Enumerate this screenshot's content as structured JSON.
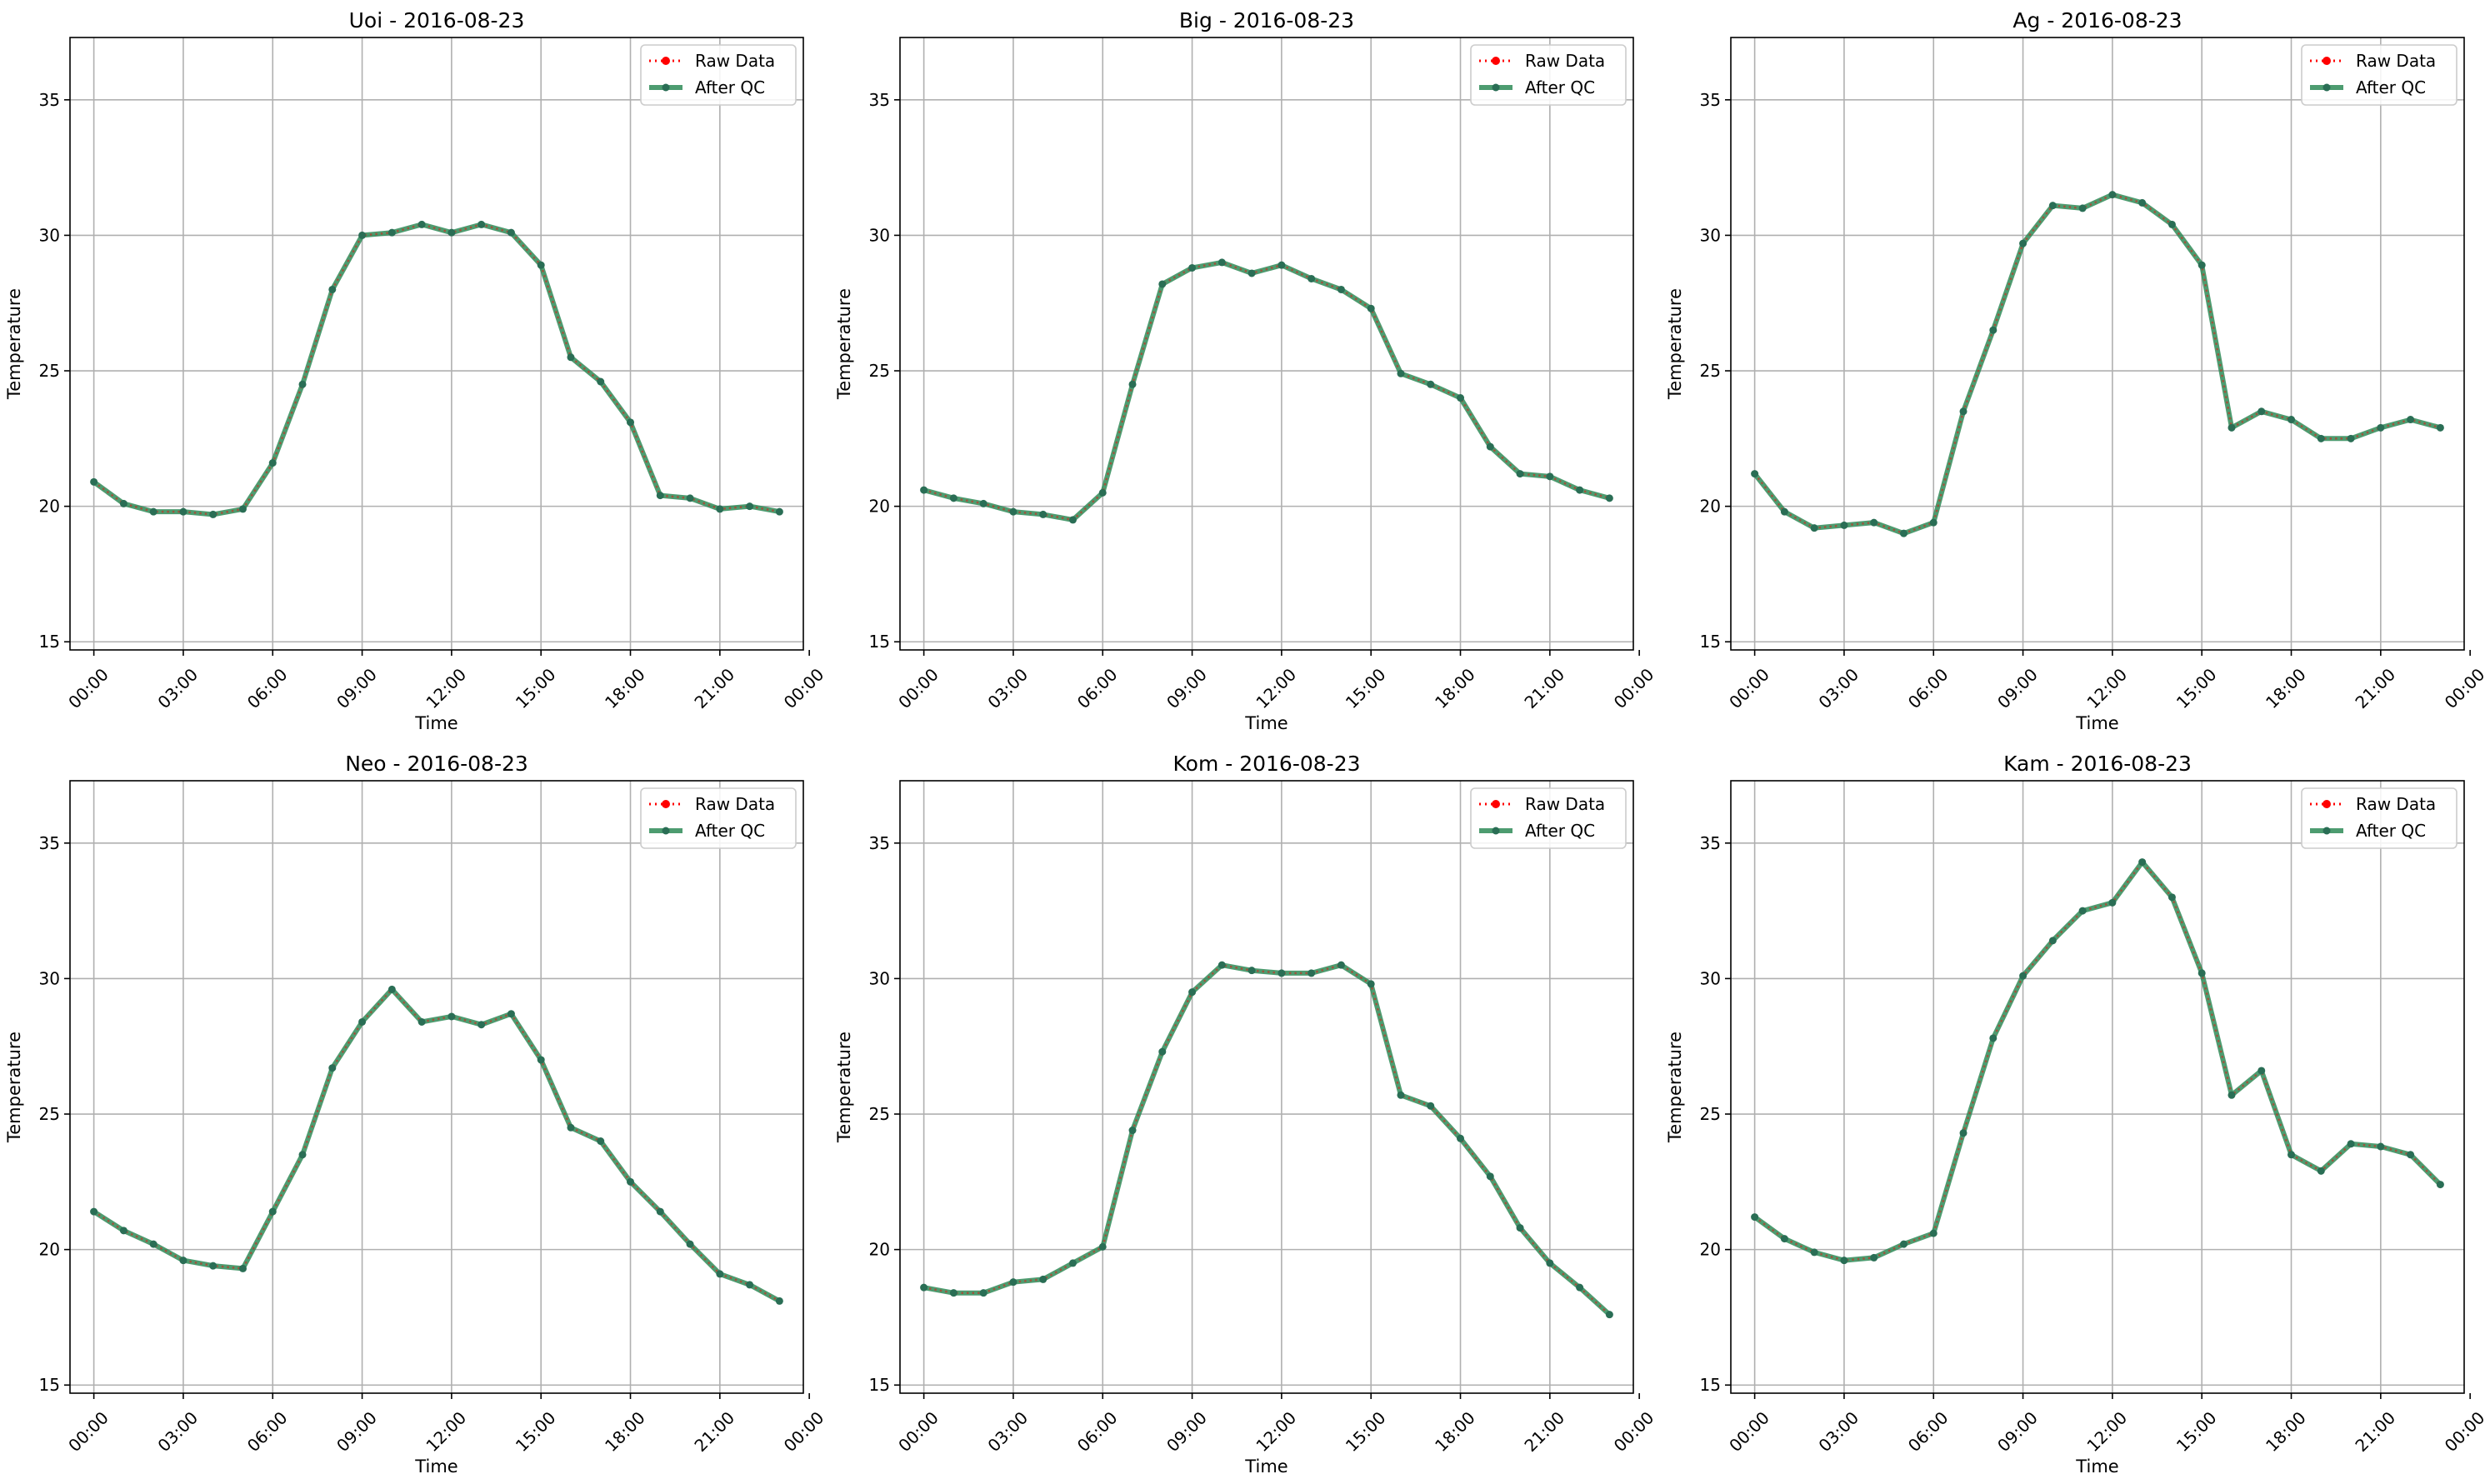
{
  "figure": {
    "colors": {
      "raw": "#ff0000",
      "qc": "#2e8b57",
      "grid": "#b0b0b0",
      "legend_border": "#cccccc"
    }
  },
  "chart_data": [
    {
      "type": "line",
      "title": "Uoi - 2016-08-23",
      "xlabel": "Time",
      "ylabel": "Temperature",
      "ylim": [
        14.7,
        37.3
      ],
      "yticks": [
        15,
        20,
        25,
        30,
        35
      ],
      "xlim": [
        -0.8,
        23.8
      ],
      "xticks": [
        0,
        3,
        6,
        9,
        12,
        15,
        18,
        21,
        24
      ],
      "xticklabels": [
        "00:00",
        "03:00",
        "06:00",
        "09:00",
        "12:00",
        "15:00",
        "18:00",
        "21:00",
        "00:00"
      ],
      "grid": true,
      "legend": "top-right",
      "series": [
        {
          "name": "Raw Data",
          "style": "dotted",
          "color": "#ff0000",
          "x": [
            0,
            1,
            2,
            3,
            4,
            5,
            6,
            7,
            8,
            9,
            10,
            11,
            12,
            13,
            14,
            15,
            16,
            17,
            18,
            19,
            20,
            21,
            22,
            23
          ],
          "values": [
            20.9,
            20.1,
            19.8,
            19.8,
            19.7,
            19.9,
            21.6,
            24.5,
            28.0,
            30.0,
            30.1,
            30.4,
            30.1,
            30.4,
            30.1,
            28.9,
            25.5,
            24.6,
            23.1,
            20.4,
            20.3,
            19.9,
            20.0,
            19.8
          ]
        },
        {
          "name": "After QC",
          "style": "solid",
          "color": "#2e8b57",
          "x": [
            0,
            1,
            2,
            3,
            4,
            5,
            6,
            7,
            8,
            9,
            10,
            11,
            12,
            13,
            14,
            15,
            16,
            17,
            18,
            19,
            20,
            21,
            22,
            23
          ],
          "values": [
            20.9,
            20.1,
            19.8,
            19.8,
            19.7,
            19.9,
            21.6,
            24.5,
            28.0,
            30.0,
            30.1,
            30.4,
            30.1,
            30.4,
            30.1,
            28.9,
            25.5,
            24.6,
            23.1,
            20.4,
            20.3,
            19.9,
            20.0,
            19.8
          ]
        }
      ]
    },
    {
      "type": "line",
      "title": "Big - 2016-08-23",
      "xlabel": "Time",
      "ylabel": "Temperature",
      "ylim": [
        14.7,
        37.3
      ],
      "yticks": [
        15,
        20,
        25,
        30,
        35
      ],
      "xlim": [
        -0.8,
        23.8
      ],
      "xticks": [
        0,
        3,
        6,
        9,
        12,
        15,
        18,
        21,
        24
      ],
      "xticklabels": [
        "00:00",
        "03:00",
        "06:00",
        "09:00",
        "12:00",
        "15:00",
        "18:00",
        "21:00",
        "00:00"
      ],
      "grid": true,
      "legend": "top-right",
      "series": [
        {
          "name": "Raw Data",
          "style": "dotted",
          "color": "#ff0000",
          "x": [
            0,
            1,
            2,
            3,
            4,
            5,
            6,
            7,
            8,
            9,
            10,
            11,
            12,
            13,
            14,
            15,
            16,
            17,
            18,
            19,
            20,
            21,
            22,
            23
          ],
          "values": [
            20.6,
            20.3,
            20.1,
            19.8,
            19.7,
            19.5,
            20.5,
            24.5,
            28.2,
            28.8,
            29.0,
            28.6,
            28.9,
            28.4,
            28.0,
            27.3,
            24.9,
            24.5,
            24.0,
            22.2,
            21.2,
            21.1,
            20.6,
            20.3
          ]
        },
        {
          "name": "After QC",
          "style": "solid",
          "color": "#2e8b57",
          "x": [
            0,
            1,
            2,
            3,
            4,
            5,
            6,
            7,
            8,
            9,
            10,
            11,
            12,
            13,
            14,
            15,
            16,
            17,
            18,
            19,
            20,
            21,
            22,
            23
          ],
          "values": [
            20.6,
            20.3,
            20.1,
            19.8,
            19.7,
            19.5,
            20.5,
            24.5,
            28.2,
            28.8,
            29.0,
            28.6,
            28.9,
            28.4,
            28.0,
            27.3,
            24.9,
            24.5,
            24.0,
            22.2,
            21.2,
            21.1,
            20.6,
            20.3
          ]
        }
      ]
    },
    {
      "type": "line",
      "title": "Ag - 2016-08-23",
      "xlabel": "Time",
      "ylabel": "Temperature",
      "ylim": [
        14.7,
        37.3
      ],
      "yticks": [
        15,
        20,
        25,
        30,
        35
      ],
      "xlim": [
        -0.8,
        23.8
      ],
      "xticks": [
        0,
        3,
        6,
        9,
        12,
        15,
        18,
        21,
        24
      ],
      "xticklabels": [
        "00:00",
        "03:00",
        "06:00",
        "09:00",
        "12:00",
        "15:00",
        "18:00",
        "21:00",
        "00:00"
      ],
      "grid": true,
      "legend": "top-right",
      "series": [
        {
          "name": "Raw Data",
          "style": "dotted",
          "color": "#ff0000",
          "x": [
            0,
            1,
            2,
            3,
            4,
            5,
            6,
            7,
            8,
            9,
            10,
            11,
            12,
            13,
            14,
            15,
            16,
            17,
            18,
            19,
            20,
            21,
            22,
            23
          ],
          "values": [
            21.2,
            19.8,
            19.2,
            19.3,
            19.4,
            19.0,
            19.4,
            23.5,
            26.5,
            29.7,
            31.1,
            31.0,
            31.5,
            31.2,
            30.4,
            28.9,
            22.9,
            23.5,
            23.2,
            22.5,
            22.5,
            22.9,
            23.2,
            22.9
          ]
        },
        {
          "name": "After QC",
          "style": "solid",
          "color": "#2e8b57",
          "x": [
            0,
            1,
            2,
            3,
            4,
            5,
            6,
            7,
            8,
            9,
            10,
            11,
            12,
            13,
            14,
            15,
            16,
            17,
            18,
            19,
            20,
            21,
            22,
            23
          ],
          "values": [
            21.2,
            19.8,
            19.2,
            19.3,
            19.4,
            19.0,
            19.4,
            23.5,
            26.5,
            29.7,
            31.1,
            31.0,
            31.5,
            31.2,
            30.4,
            28.9,
            22.9,
            23.5,
            23.2,
            22.5,
            22.5,
            22.9,
            23.2,
            22.9
          ]
        }
      ]
    },
    {
      "type": "line",
      "title": "Neo - 2016-08-23",
      "xlabel": "Time",
      "ylabel": "Temperature",
      "ylim": [
        14.7,
        37.3
      ],
      "yticks": [
        15,
        20,
        25,
        30,
        35
      ],
      "xlim": [
        -0.8,
        23.8
      ],
      "xticks": [
        0,
        3,
        6,
        9,
        12,
        15,
        18,
        21,
        24
      ],
      "xticklabels": [
        "00:00",
        "03:00",
        "06:00",
        "09:00",
        "12:00",
        "15:00",
        "18:00",
        "21:00",
        "00:00"
      ],
      "grid": true,
      "legend": "top-right",
      "series": [
        {
          "name": "Raw Data",
          "style": "dotted",
          "color": "#ff0000",
          "x": [
            0,
            1,
            2,
            3,
            4,
            5,
            6,
            7,
            8,
            9,
            10,
            11,
            12,
            13,
            14,
            15,
            16,
            17,
            18,
            19,
            20,
            21,
            22,
            23
          ],
          "values": [
            21.4,
            20.7,
            20.2,
            19.6,
            19.4,
            19.3,
            21.4,
            23.5,
            26.7,
            28.4,
            29.6,
            28.4,
            28.6,
            28.3,
            28.7,
            27.0,
            24.5,
            24.0,
            22.5,
            21.4,
            20.2,
            19.1,
            18.7,
            18.1
          ]
        },
        {
          "name": "After QC",
          "style": "solid",
          "color": "#2e8b57",
          "x": [
            0,
            1,
            2,
            3,
            4,
            5,
            6,
            7,
            8,
            9,
            10,
            11,
            12,
            13,
            14,
            15,
            16,
            17,
            18,
            19,
            20,
            21,
            22,
            23
          ],
          "values": [
            21.4,
            20.7,
            20.2,
            19.6,
            19.4,
            19.3,
            21.4,
            23.5,
            26.7,
            28.4,
            29.6,
            28.4,
            28.6,
            28.3,
            28.7,
            27.0,
            24.5,
            24.0,
            22.5,
            21.4,
            20.2,
            19.1,
            18.7,
            18.1
          ]
        }
      ]
    },
    {
      "type": "line",
      "title": "Kom - 2016-08-23",
      "xlabel": "Time",
      "ylabel": "Temperature",
      "ylim": [
        14.7,
        37.3
      ],
      "yticks": [
        15,
        20,
        25,
        30,
        35
      ],
      "xlim": [
        -0.8,
        23.8
      ],
      "xticks": [
        0,
        3,
        6,
        9,
        12,
        15,
        18,
        21,
        24
      ],
      "xticklabels": [
        "00:00",
        "03:00",
        "06:00",
        "09:00",
        "12:00",
        "15:00",
        "18:00",
        "21:00",
        "00:00"
      ],
      "grid": true,
      "legend": "top-right",
      "series": [
        {
          "name": "Raw Data",
          "style": "dotted",
          "color": "#ff0000",
          "x": [
            0,
            1,
            2,
            3,
            4,
            5,
            6,
            7,
            8,
            9,
            10,
            11,
            12,
            13,
            14,
            15,
            16,
            17,
            18,
            19,
            20,
            21,
            22,
            23
          ],
          "values": [
            18.6,
            18.4,
            18.4,
            18.8,
            18.9,
            19.5,
            20.1,
            24.4,
            27.3,
            29.5,
            30.5,
            30.3,
            30.2,
            30.2,
            30.5,
            29.8,
            25.7,
            25.3,
            24.1,
            22.7,
            20.8,
            19.5,
            18.6,
            17.6
          ]
        },
        {
          "name": "After QC",
          "style": "solid",
          "color": "#2e8b57",
          "x": [
            0,
            1,
            2,
            3,
            4,
            5,
            6,
            7,
            8,
            9,
            10,
            11,
            12,
            13,
            14,
            15,
            16,
            17,
            18,
            19,
            20,
            21,
            22,
            23
          ],
          "values": [
            18.6,
            18.4,
            18.4,
            18.8,
            18.9,
            19.5,
            20.1,
            24.4,
            27.3,
            29.5,
            30.5,
            30.3,
            30.2,
            30.2,
            30.5,
            29.8,
            25.7,
            25.3,
            24.1,
            22.7,
            20.8,
            19.5,
            18.6,
            17.6
          ]
        }
      ]
    },
    {
      "type": "line",
      "title": "Kam - 2016-08-23",
      "xlabel": "Time",
      "ylabel": "Temperature",
      "ylim": [
        14.7,
        37.3
      ],
      "yticks": [
        15,
        20,
        25,
        30,
        35
      ],
      "xlim": [
        -0.8,
        23.8
      ],
      "xticks": [
        0,
        3,
        6,
        9,
        12,
        15,
        18,
        21,
        24
      ],
      "xticklabels": [
        "00:00",
        "03:00",
        "06:00",
        "09:00",
        "12:00",
        "15:00",
        "18:00",
        "21:00",
        "00:00"
      ],
      "grid": true,
      "legend": "top-right",
      "series": [
        {
          "name": "Raw Data",
          "style": "dotted",
          "color": "#ff0000",
          "x": [
            0,
            1,
            2,
            3,
            4,
            5,
            6,
            7,
            8,
            9,
            10,
            11,
            12,
            13,
            14,
            15,
            16,
            17,
            18,
            19,
            20,
            21,
            22,
            23
          ],
          "values": [
            21.2,
            20.4,
            19.9,
            19.6,
            19.7,
            20.2,
            20.6,
            24.3,
            27.8,
            30.1,
            31.4,
            32.5,
            32.8,
            34.3,
            33.0,
            30.2,
            25.7,
            26.6,
            23.5,
            22.9,
            23.9,
            23.8,
            23.5,
            22.4
          ]
        },
        {
          "name": "After QC",
          "style": "solid",
          "color": "#2e8b57",
          "x": [
            0,
            1,
            2,
            3,
            4,
            5,
            6,
            7,
            8,
            9,
            10,
            11,
            12,
            13,
            14,
            15,
            16,
            17,
            18,
            19,
            20,
            21,
            22,
            23
          ],
          "values": [
            21.2,
            20.4,
            19.9,
            19.6,
            19.7,
            20.2,
            20.6,
            24.3,
            27.8,
            30.1,
            31.4,
            32.5,
            32.8,
            34.3,
            33.0,
            30.2,
            25.7,
            26.6,
            23.5,
            22.9,
            23.9,
            23.8,
            23.5,
            22.4
          ]
        }
      ]
    }
  ]
}
